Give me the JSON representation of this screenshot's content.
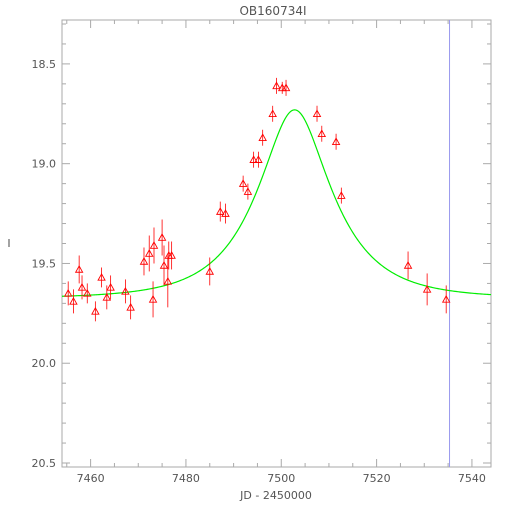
{
  "chart_data": {
    "type": "scatter",
    "title": "OB160734I",
    "xlabel": "JD - 2450000",
    "ylabel": "I",
    "xlim": [
      7454,
      7544
    ],
    "ylim": [
      20.52,
      18.28
    ],
    "y_inverted": true,
    "xticks": [
      7460,
      7480,
      7500,
      7520,
      7540
    ],
    "yticks": [
      18.5,
      19.0,
      19.5,
      20.0,
      20.5
    ],
    "xtick_labels": [
      "7460",
      "7480",
      "7500",
      "7520",
      "7540"
    ],
    "ytick_labels": [
      "18.5",
      "19.0",
      "19.5",
      "20.0",
      "20.5"
    ],
    "grid": false,
    "series": [
      {
        "kind": "points_with_errorbars",
        "marker": "triangle",
        "color": "#ff0000",
        "points": [
          {
            "x": 7455.3,
            "y": 19.65,
            "err": 0.06
          },
          {
            "x": 7456.4,
            "y": 19.69,
            "err": 0.06
          },
          {
            "x": 7457.6,
            "y": 19.53,
            "err": 0.07
          },
          {
            "x": 7458.2,
            "y": 19.62,
            "err": 0.06
          },
          {
            "x": 7459.3,
            "y": 19.65,
            "err": 0.05
          },
          {
            "x": 7461.0,
            "y": 19.74,
            "err": 0.05
          },
          {
            "x": 7462.3,
            "y": 19.57,
            "err": 0.05
          },
          {
            "x": 7463.4,
            "y": 19.67,
            "err": 0.06
          },
          {
            "x": 7464.2,
            "y": 19.62,
            "err": 0.06
          },
          {
            "x": 7467.3,
            "y": 19.64,
            "err": 0.06
          },
          {
            "x": 7468.4,
            "y": 19.72,
            "err": 0.06
          },
          {
            "x": 7471.2,
            "y": 19.49,
            "err": 0.07
          },
          {
            "x": 7472.3,
            "y": 19.45,
            "err": 0.09
          },
          {
            "x": 7473.3,
            "y": 19.41,
            "err": 0.09
          },
          {
            "x": 7473.1,
            "y": 19.68,
            "err": 0.09
          },
          {
            "x": 7475.0,
            "y": 19.37,
            "err": 0.09
          },
          {
            "x": 7475.4,
            "y": 19.51,
            "err": 0.1
          },
          {
            "x": 7476.2,
            "y": 19.59,
            "err": 0.13
          },
          {
            "x": 7476.4,
            "y": 19.46,
            "err": 0.07
          },
          {
            "x": 7477.0,
            "y": 19.46,
            "err": 0.07
          },
          {
            "x": 7485.0,
            "y": 19.54,
            "err": 0.07
          },
          {
            "x": 7487.2,
            "y": 19.24,
            "err": 0.05
          },
          {
            "x": 7488.3,
            "y": 19.25,
            "err": 0.05
          },
          {
            "x": 7492.0,
            "y": 19.1,
            "err": 0.04
          },
          {
            "x": 7493.0,
            "y": 19.14,
            "err": 0.04
          },
          {
            "x": 7494.2,
            "y": 18.98,
            "err": 0.04
          },
          {
            "x": 7495.2,
            "y": 18.98,
            "err": 0.04
          },
          {
            "x": 7496.1,
            "y": 18.87,
            "err": 0.04
          },
          {
            "x": 7498.2,
            "y": 18.75,
            "err": 0.04
          },
          {
            "x": 7499.0,
            "y": 18.61,
            "err": 0.04
          },
          {
            "x": 7500.2,
            "y": 18.62,
            "err": 0.03
          },
          {
            "x": 7501.0,
            "y": 18.62,
            "err": 0.04
          },
          {
            "x": 7507.5,
            "y": 18.75,
            "err": 0.04
          },
          {
            "x": 7508.5,
            "y": 18.85,
            "err": 0.04
          },
          {
            "x": 7511.5,
            "y": 18.89,
            "err": 0.04
          },
          {
            "x": 7512.6,
            "y": 19.16,
            "err": 0.04
          },
          {
            "x": 7526.6,
            "y": 19.51,
            "err": 0.07
          },
          {
            "x": 7530.6,
            "y": 19.63,
            "err": 0.08
          },
          {
            "x": 7534.6,
            "y": 19.68,
            "err": 0.07
          }
        ]
      },
      {
        "kind": "model_curve",
        "color": "#00ee00",
        "model": {
          "t0": 7502.8,
          "tE": 14.0,
          "u0": 0.45,
          "baseline": 19.675
        }
      }
    ],
    "annotations": [
      {
        "kind": "vertical_line",
        "x": 7535.3,
        "color": "#9999ee"
      }
    ]
  }
}
